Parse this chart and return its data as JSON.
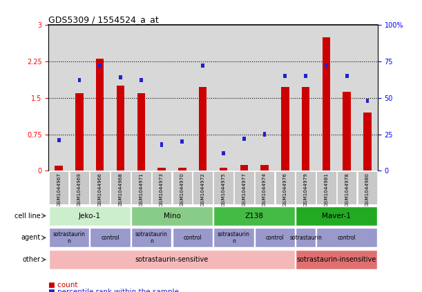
{
  "title": "GDS5309 / 1554524_a_at",
  "samples": [
    "GSM1044967",
    "GSM1044969",
    "GSM1044966",
    "GSM1044968",
    "GSM1044971",
    "GSM1044973",
    "GSM1044970",
    "GSM1044972",
    "GSM1044975",
    "GSM1044977",
    "GSM1044974",
    "GSM1044976",
    "GSM1044979",
    "GSM1044981",
    "GSM1044978",
    "GSM1044980"
  ],
  "counts": [
    0.1,
    1.6,
    2.3,
    1.75,
    1.6,
    0.06,
    0.06,
    1.72,
    0.06,
    0.12,
    0.12,
    1.72,
    1.72,
    2.75,
    1.62,
    1.2
  ],
  "percentile_ranks_scaled": [
    0.21,
    0.62,
    0.72,
    0.64,
    0.62,
    0.18,
    0.2,
    0.72,
    0.12,
    0.22,
    0.25,
    0.65,
    0.65,
    0.72,
    0.65,
    0.48
  ],
  "bar_color": "#cc0000",
  "dot_color": "#2222cc",
  "ylim_left": [
    0,
    3
  ],
  "ylim_right": [
    0,
    100
  ],
  "yticks_left": [
    0,
    0.75,
    1.5,
    2.25,
    3
  ],
  "yticks_right": [
    0,
    25,
    50,
    75,
    100
  ],
  "ytick_labels_left": [
    "0",
    "0.75",
    "1.5",
    "2.25",
    "3"
  ],
  "ytick_labels_right": [
    "0",
    "25",
    "50",
    "75",
    "100%"
  ],
  "cell_lines": [
    {
      "label": "Jeko-1",
      "start": 0,
      "end": 3,
      "color": "#cceecc"
    },
    {
      "label": "Mino",
      "start": 4,
      "end": 7,
      "color": "#88cc88"
    },
    {
      "label": "Z138",
      "start": 8,
      "end": 11,
      "color": "#44bb44"
    },
    {
      "label": "Maver-1",
      "start": 12,
      "end": 15,
      "color": "#22aa22"
    }
  ],
  "agents": [
    {
      "label": "sotrastaurin\nn",
      "start": 0,
      "end": 1,
      "color": "#9999cc"
    },
    {
      "label": "control",
      "start": 2,
      "end": 3,
      "color": "#9999cc"
    },
    {
      "label": "sotrastaurin\nn",
      "start": 4,
      "end": 5,
      "color": "#9999cc"
    },
    {
      "label": "control",
      "start": 6,
      "end": 7,
      "color": "#9999cc"
    },
    {
      "label": "sotrastaurin\nn",
      "start": 8,
      "end": 9,
      "color": "#9999cc"
    },
    {
      "label": "control",
      "start": 10,
      "end": 11,
      "color": "#9999cc"
    },
    {
      "label": "sotrastaurin",
      "start": 12,
      "end": 12,
      "color": "#9999cc"
    },
    {
      "label": "control",
      "start": 13,
      "end": 15,
      "color": "#9999cc"
    }
  ],
  "others": [
    {
      "label": "sotrastaurin-sensitive",
      "start": 0,
      "end": 11,
      "color": "#f4b8b8"
    },
    {
      "label": "sotrastaurin-insensitive",
      "start": 12,
      "end": 15,
      "color": "#e07070"
    }
  ],
  "legend_count_color": "#cc0000",
  "legend_dot_color": "#2222cc",
  "xtick_bg": "#c8c8c8",
  "chart_bg": "#ffffff",
  "bar_bg": "#d8d8d8"
}
